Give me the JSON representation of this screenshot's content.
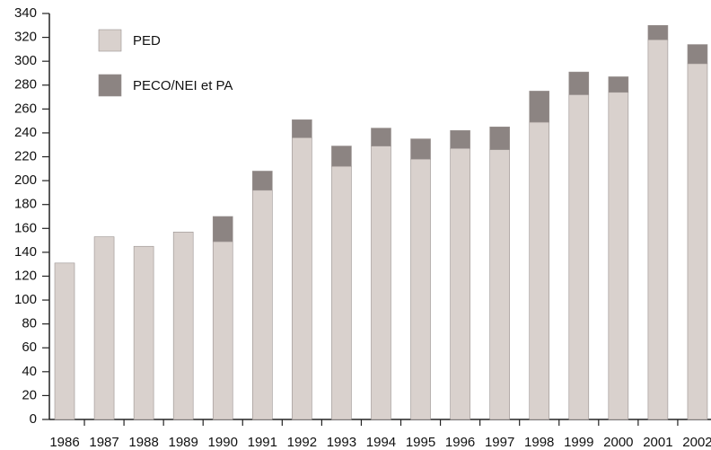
{
  "chart_data": {
    "type": "stacked_bar",
    "categories": [
      "1986",
      "1987",
      "1988",
      "1989",
      "1990",
      "1991",
      "1992",
      "1993",
      "1994",
      "1995",
      "1996",
      "1997",
      "1998",
      "1999",
      "2000",
      "2001",
      "2002"
    ],
    "series": [
      {
        "name": "PED",
        "color": "#d9d1cd",
        "values": [
          131,
          153,
          145,
          157,
          149,
          192,
          236,
          212,
          229,
          218,
          227,
          226,
          249,
          272,
          274,
          318,
          298
        ]
      },
      {
        "name": "PECO/NEI et PA",
        "color": "#8c8482",
        "values": [
          0,
          0,
          0,
          0,
          21,
          16,
          15,
          17,
          15,
          17,
          15,
          19,
          26,
          19,
          13,
          12,
          16
        ]
      }
    ],
    "ylim": [
      0,
      340
    ],
    "yticks": [
      0,
      20,
      40,
      60,
      80,
      100,
      120,
      140,
      160,
      180,
      200,
      220,
      240,
      260,
      280,
      300,
      320,
      340
    ],
    "legend": "top-left"
  }
}
